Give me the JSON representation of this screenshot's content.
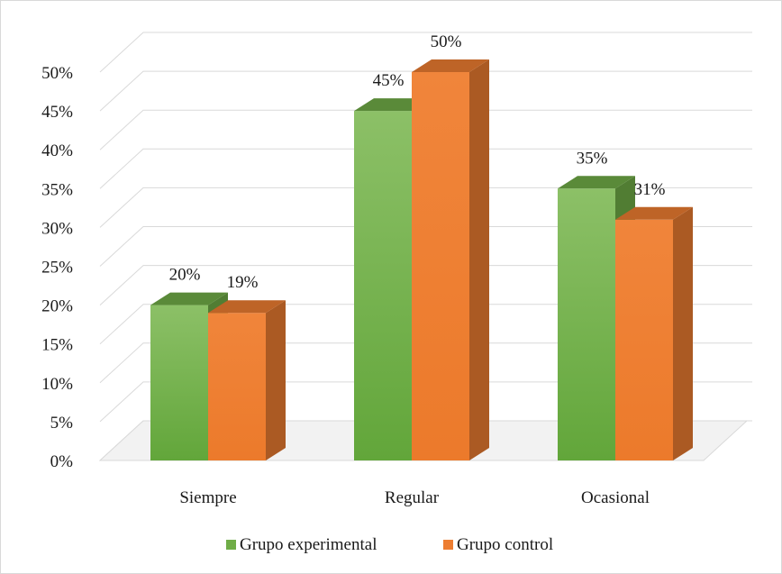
{
  "chart_data": {
    "type": "bar",
    "title": "",
    "xlabel": "",
    "ylabel": "",
    "categories": [
      "Siempre",
      "Regular",
      "Ocasional"
    ],
    "series": [
      {
        "name": "Grupo experimental",
        "values": [
          20,
          45,
          35
        ],
        "labels": [
          "20%",
          "45%",
          "35%"
        ],
        "color": "#70ad47"
      },
      {
        "name": "Grupo control",
        "values": [
          19,
          50,
          31
        ],
        "labels": [
          "19%",
          "50%",
          "31%"
        ],
        "color": "#ed7d31"
      }
    ],
    "ylim": [
      0,
      50
    ],
    "y_ticks": [
      "0%",
      "5%",
      "10%",
      "15%",
      "20%",
      "25%",
      "30%",
      "35%",
      "40%",
      "45%",
      "50%"
    ],
    "grid": true,
    "style": "3d-clustered-column",
    "legend": "bottom"
  }
}
